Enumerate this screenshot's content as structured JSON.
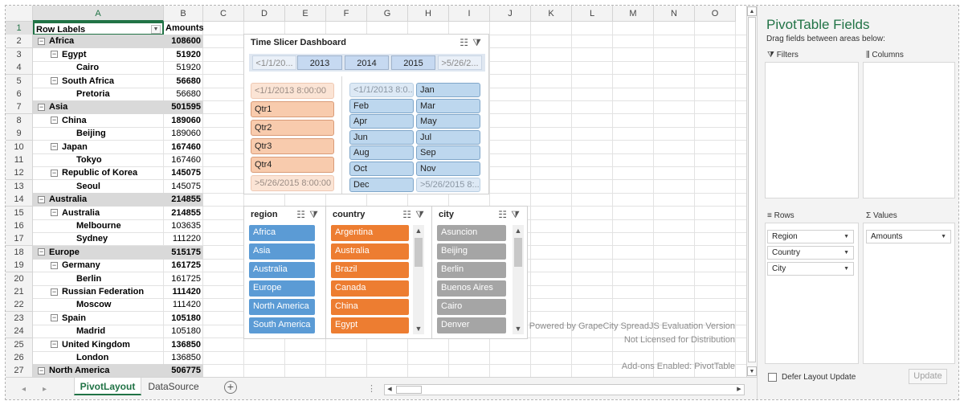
{
  "columns": [
    "A",
    "B",
    "C",
    "D",
    "E",
    "F",
    "G",
    "H",
    "I",
    "J",
    "K",
    "L",
    "M",
    "N",
    "O"
  ],
  "rows": [
    {
      "num": "1",
      "a": "Row Labels",
      "b": "Amounts",
      "type": "header"
    },
    {
      "num": "2",
      "a": "Africa",
      "b": "108600",
      "type": "l0"
    },
    {
      "num": "3",
      "a": "Egypt",
      "b": "51920",
      "type": "l1"
    },
    {
      "num": "4",
      "a": "Cairo",
      "b": "51920",
      "type": "l2"
    },
    {
      "num": "5",
      "a": "South Africa",
      "b": "56680",
      "type": "l1"
    },
    {
      "num": "6",
      "a": "Pretoria",
      "b": "56680",
      "type": "l2"
    },
    {
      "num": "7",
      "a": "Asia",
      "b": "501595",
      "type": "l0"
    },
    {
      "num": "8",
      "a": "China",
      "b": "189060",
      "type": "l1"
    },
    {
      "num": "9",
      "a": "Beijing",
      "b": "189060",
      "type": "l2"
    },
    {
      "num": "10",
      "a": "Japan",
      "b": "167460",
      "type": "l1"
    },
    {
      "num": "11",
      "a": "Tokyo",
      "b": "167460",
      "type": "l2"
    },
    {
      "num": "12",
      "a": "Republic of Korea",
      "b": "145075",
      "type": "l1"
    },
    {
      "num": "13",
      "a": "Seoul",
      "b": "145075",
      "type": "l2"
    },
    {
      "num": "14",
      "a": "Australia",
      "b": "214855",
      "type": "l0"
    },
    {
      "num": "15",
      "a": "Australia",
      "b": "214855",
      "type": "l1"
    },
    {
      "num": "16",
      "a": "Melbourne",
      "b": "103635",
      "type": "l2"
    },
    {
      "num": "17",
      "a": "Sydney",
      "b": "111220",
      "type": "l2"
    },
    {
      "num": "18",
      "a": "Europe",
      "b": "515175",
      "type": "l0"
    },
    {
      "num": "19",
      "a": "Germany",
      "b": "161725",
      "type": "l1"
    },
    {
      "num": "20",
      "a": "Berlin",
      "b": "161725",
      "type": "l2"
    },
    {
      "num": "21",
      "a": "Russian Federation",
      "b": "111420",
      "type": "l1"
    },
    {
      "num": "22",
      "a": "Moscow",
      "b": "111420",
      "type": "l2"
    },
    {
      "num": "23",
      "a": "Spain",
      "b": "105180",
      "type": "l1"
    },
    {
      "num": "24",
      "a": "Madrid",
      "b": "105180",
      "type": "l2"
    },
    {
      "num": "25",
      "a": "United Kingdom",
      "b": "136850",
      "type": "l1"
    },
    {
      "num": "26",
      "a": "London",
      "b": "136850",
      "type": "l2"
    },
    {
      "num": "27",
      "a": "North America",
      "b": "506775",
      "type": "l0"
    }
  ],
  "time_slicer": {
    "title": "Time Slicer Dashboard",
    "years": [
      "<1/1/20...",
      "2013",
      "2014",
      "2015",
      ">5/26/2..."
    ],
    "quarters": [
      "<1/1/2013 8:00:00",
      "Qtr1",
      "Qtr2",
      "Qtr3",
      "Qtr4",
      ">5/26/2015 8:00:00"
    ],
    "months": [
      "<1/1/2013 8:0...",
      "Jan",
      "Feb",
      "Mar",
      "Apr",
      "May",
      "Jun",
      "Jul",
      "Aug",
      "Sep",
      "Oct",
      "Nov",
      "Dec",
      ">5/26/2015 8:..."
    ]
  },
  "region_slicer": {
    "title": "region",
    "items": [
      "Africa",
      "Asia",
      "Australia",
      "Europe",
      "North America",
      "South America"
    ]
  },
  "country_slicer": {
    "title": "country",
    "items": [
      "Argentina",
      "Australia",
      "Brazil",
      "Canada",
      "China",
      "Egypt"
    ]
  },
  "city_slicer": {
    "title": "city",
    "items": [
      "Asuncion",
      "Beijing",
      "Berlin",
      "Buenos Aires",
      "Cairo",
      "Denver"
    ]
  },
  "watermark": {
    "line1": "Powered by GrapeCity SpreadJS Evaluation Version",
    "line2": "Not Licensed for Distribution",
    "line3": "Add-ons Enabled: PivotTable"
  },
  "tabs": {
    "active": "PivotLayout",
    "inactive": "DataSource",
    "dots": "⋮"
  },
  "panel": {
    "title": "PivotTable Fields",
    "subtitle": "Drag fields between areas below:",
    "filters_label": "Filters",
    "columns_label": "Columns",
    "rows_label": "Rows",
    "values_label": "Values",
    "rows_fields": [
      "Region",
      "Country",
      "City"
    ],
    "values_fields": [
      "Amounts"
    ],
    "defer_label": "Defer Layout Update",
    "update_label": "Update"
  },
  "colors": {
    "accent": "#217346",
    "region": "#5b9bd5",
    "country": "#ed7d31",
    "city": "#a5a5a5"
  }
}
